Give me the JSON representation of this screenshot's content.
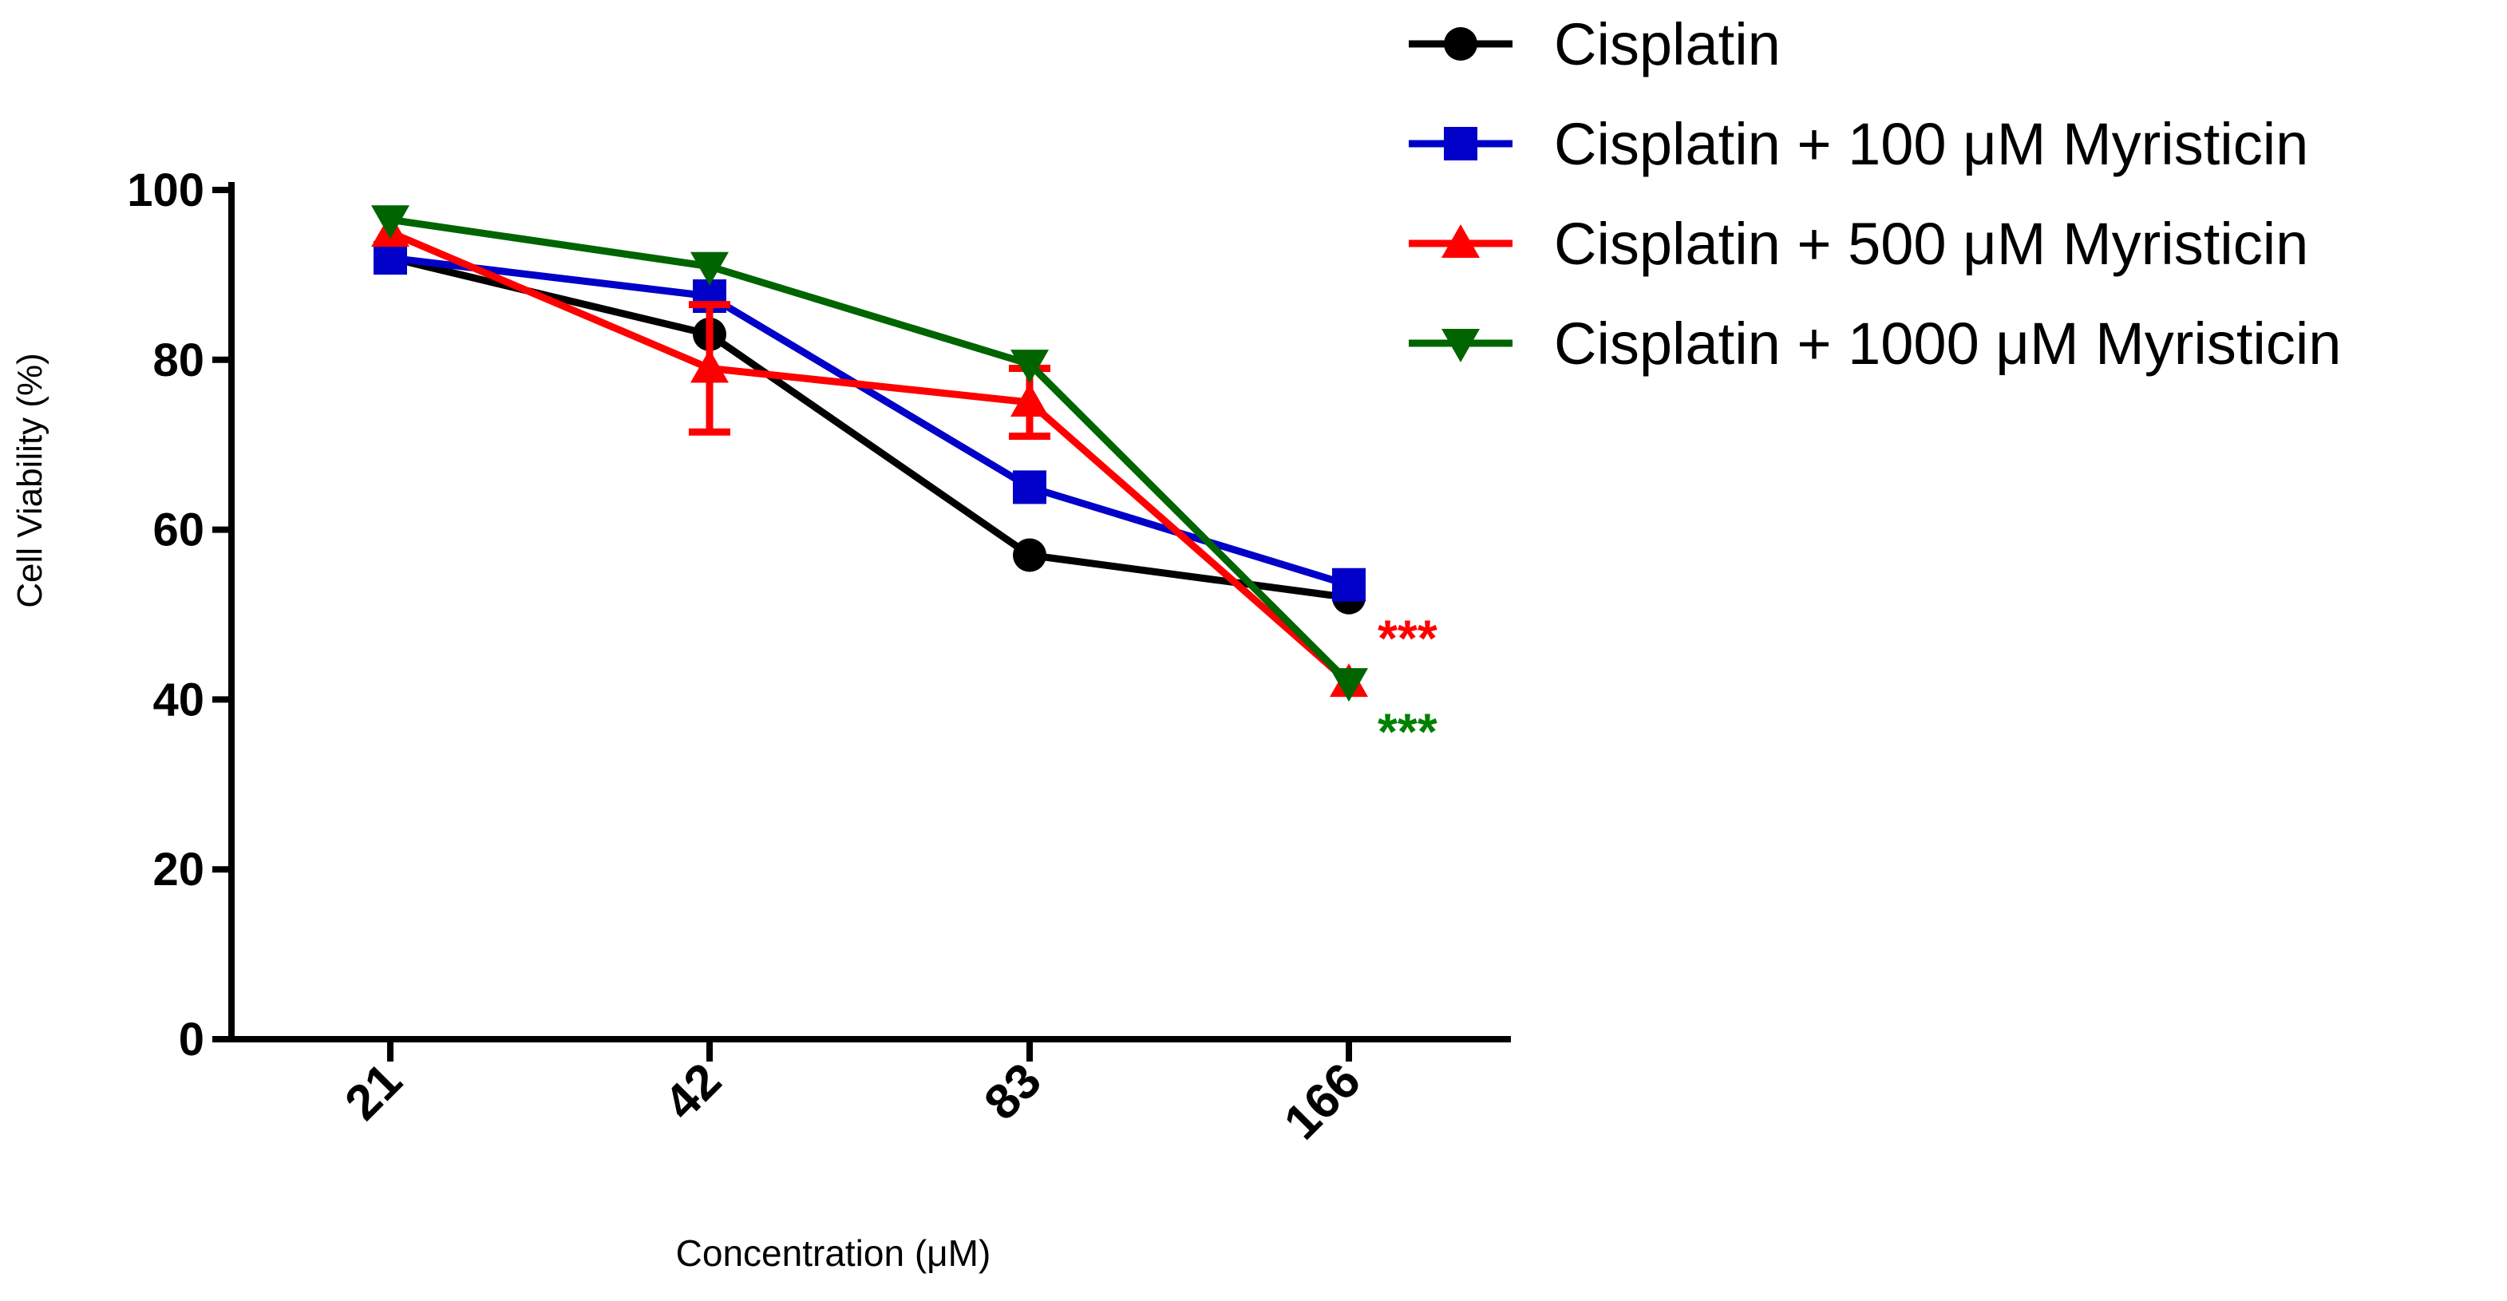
{
  "chart_data": {
    "type": "line",
    "xlabel": "Concentration (μM)",
    "ylabel": "Cell Viability (%)",
    "categories": [
      "21",
      "42",
      "83",
      "166"
    ],
    "ylim": [
      0,
      100
    ],
    "yticks": [
      0,
      20,
      40,
      60,
      80,
      100
    ],
    "grid": false,
    "legend_position": "top-right",
    "series": [
      {
        "name": "Cisplatin",
        "color": "#000000",
        "marker": "circle",
        "values": [
          92,
          83,
          57,
          52
        ],
        "errors": [
          null,
          null,
          null,
          null
        ]
      },
      {
        "name": "Cisplatin + 100 μM Myristicin",
        "color": "#0000c8",
        "marker": "square",
        "values": [
          92,
          87.5,
          65,
          53.5
        ],
        "errors": [
          null,
          null,
          null,
          null
        ]
      },
      {
        "name": "Cisplatin + 500 μM Myristicin",
        "color": "#ff0000",
        "marker": "triangle-up",
        "values": [
          95,
          79,
          75,
          42
        ],
        "errors": [
          null,
          7.5,
          4,
          null
        ]
      },
      {
        "name": "Cisplatin + 1000 μM Myristicin",
        "color": "#006400",
        "marker": "triangle-down",
        "values": [
          96.5,
          91,
          79.5,
          42
        ],
        "errors": [
          null,
          null,
          null,
          null
        ]
      }
    ],
    "annotations": [
      {
        "text": "***",
        "color": "#ff0000",
        "category": "166",
        "y": 48
      },
      {
        "text": "***",
        "color": "#008000",
        "category": "166",
        "y": 37
      }
    ]
  }
}
